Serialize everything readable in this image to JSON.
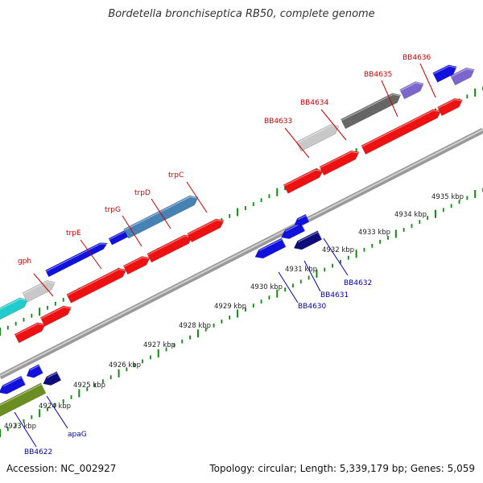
{
  "title": "Bordetella bronchiseptica RB50, complete genome",
  "accession": "Accession: NC_002927",
  "summary": "Topology: circular; Length: 5,339,179 bp; Genes: 5,059",
  "colors": {
    "red": "#ee1111",
    "blue": "#1111dd",
    "darkblue": "#0d0d7a",
    "cyan": "#22cccc",
    "steelblue": "#4682b4",
    "lightgray": "#c8c8c8",
    "darkgray": "#666666",
    "purple": "#7a66cc",
    "olive": "#6b8e23",
    "ticks_green": "#118811",
    "label_red": "#cc0000",
    "label_blue": "#0000aa"
  },
  "scale_labels": [
    "4923 kbp",
    "4924 kbp",
    "4925 kbp",
    "4926 kbp",
    "4927 kbp",
    "4928 kbp",
    "4929 kbp",
    "4930 kbp",
    "4931 kbp",
    "4932 kbp",
    "4933 kbp",
    "4934 kbp",
    "4935 kbp"
  ],
  "gene_labels_top": [
    "gph",
    "trpE",
    "trpG",
    "trpD",
    "trpC",
    "BB4633",
    "BB4634",
    "BB4635",
    "BB4636"
  ],
  "gene_labels_bottom": [
    "BB4622",
    "apaG",
    "BB4630",
    "BB4631",
    "BB4632"
  ]
}
